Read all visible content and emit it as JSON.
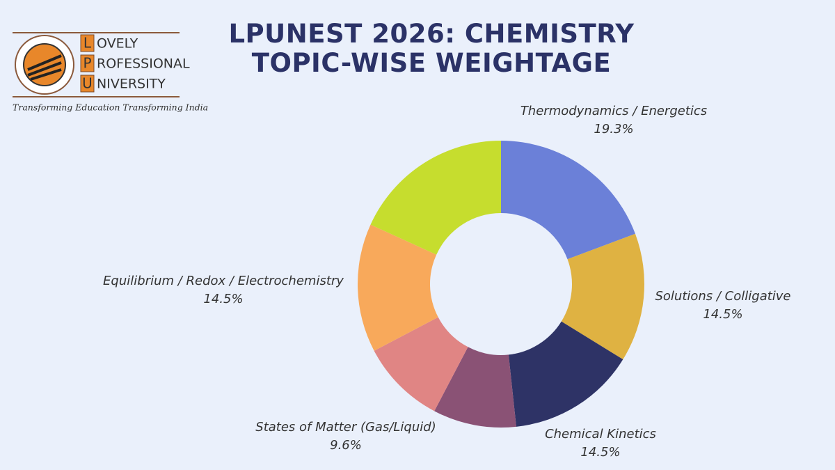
{
  "logo": {
    "letters": [
      "L",
      "P",
      "U"
    ],
    "rest": [
      "OVELY",
      "ROFESSIONAL",
      "NIVERSITY"
    ],
    "tagline": "Transforming Education Transforming India"
  },
  "chart_data": {
    "type": "donut",
    "title": "LPUNEST 2026: CHEMISTRY TOPIC-WISE WEIGHTAGE",
    "categories": [
      "Thermodynamics / Energetics",
      "Solutions / Colligative",
      "Chemical Kinetics",
      null,
      "States of Matter (Gas/Liquid)",
      "Equilibrium / Redox / Electrochemistry",
      null
    ],
    "values": [
      19.3,
      14.5,
      14.5,
      9.4,
      9.6,
      14.5,
      18.2
    ],
    "value_labels": [
      "19.3%",
      "14.5%",
      "14.5%",
      null,
      "9.6%",
      "14.5%",
      null
    ],
    "colors": [
      "#6b80d8",
      "#dfb242",
      "#2e3366",
      "#8a5275",
      "#e08584",
      "#f8a95b",
      "#c6dd2e"
    ]
  }
}
